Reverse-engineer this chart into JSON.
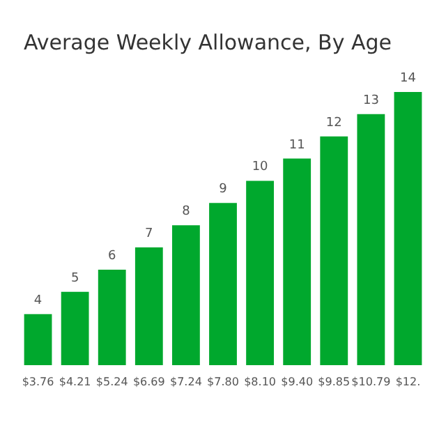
{
  "chart_data": {
    "type": "bar",
    "title": "Average Weekly Allowance, By Age",
    "categories": [
      "$3.76",
      "$4.21",
      "$5.24",
      "$6.69",
      "$7.24",
      "$7.80",
      "$8.10",
      "$9.40",
      "$9.85",
      "$10.79",
      "$12."
    ],
    "values": [
      4,
      5,
      6,
      7,
      8,
      9,
      10,
      11,
      12,
      13,
      14
    ],
    "data_labels": true,
    "ylim": [
      1.7,
      14
    ],
    "tick_labels": "x",
    "color": "#00a82d"
  }
}
